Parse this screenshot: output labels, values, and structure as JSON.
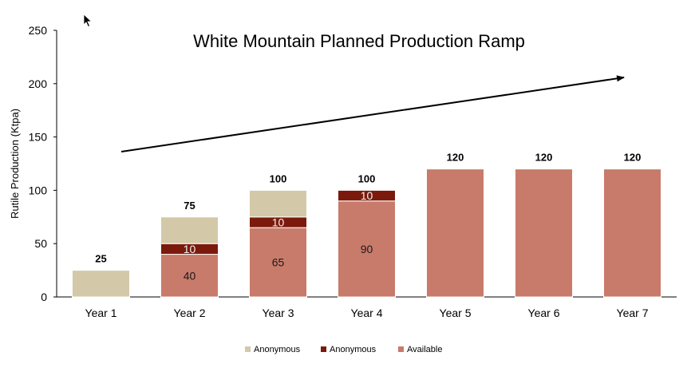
{
  "chart_data": {
    "type": "bar",
    "stacked": true,
    "title": "White Mountain Planned Production Ramp",
    "ylabel": "Rutile Production (Ktpa)",
    "xlabel": "",
    "ylim": [
      0,
      250
    ],
    "yticks": [
      0,
      50,
      100,
      150,
      200,
      250
    ],
    "grid": false,
    "legend_position": "bottom",
    "categories": [
      "Year 1",
      "Year 2",
      "Year 3",
      "Year 4",
      "Year 5",
      "Year 6",
      "Year 7"
    ],
    "series": [
      {
        "name": "Available",
        "color": "#c87b6a",
        "values": [
          0,
          40,
          65,
          90,
          120,
          120,
          120
        ],
        "labels": [
          "",
          "40",
          "65",
          "90",
          "",
          "",
          ""
        ]
      },
      {
        "name": "Anonymous",
        "color": "#7b1a0c",
        "values": [
          0,
          10,
          10,
          10,
          0,
          0,
          0
        ],
        "labels": [
          "",
          "10",
          "10",
          "10",
          "",
          "",
          ""
        ]
      },
      {
        "name": "Anonymous",
        "color": "#d3c9a8",
        "values": [
          25,
          25,
          25,
          0,
          0,
          0,
          0
        ],
        "labels": [
          "",
          "",
          "",
          "",
          "",
          "",
          ""
        ]
      }
    ],
    "totals": [
      "25",
      "75",
      "100",
      "100",
      "120",
      "120",
      "120"
    ],
    "legend": [
      {
        "name": "Anonymous",
        "color": "#d3c9a8"
      },
      {
        "name": "Anonymous",
        "color": "#7b1a0c"
      },
      {
        "name": "Available",
        "color": "#c87b6a"
      }
    ],
    "annotation": "upward trend arrow"
  },
  "icons": {
    "cursor": "mouse-pointer-icon"
  }
}
